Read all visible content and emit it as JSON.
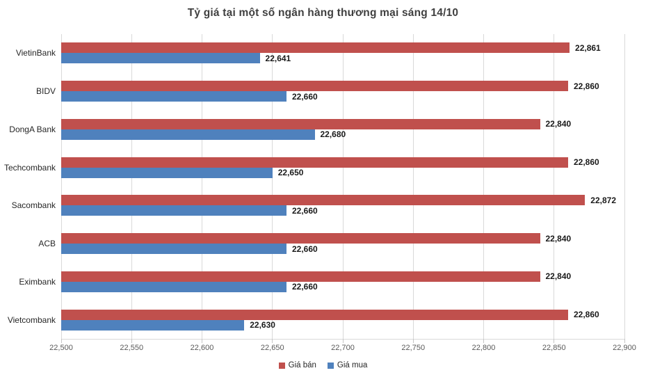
{
  "title": "Tỷ giá tại một số ngân hàng thương mại sáng 14/10",
  "colors": {
    "sell_bar": "#C0504D",
    "buy_bar": "#4F81BD",
    "gridline": "#d9d9d9",
    "title_text": "#404040",
    "tick_text": "#595959",
    "label_text": "#1a1a1a"
  },
  "chart_data": {
    "type": "bar",
    "orientation": "horizontal",
    "title": "Tỷ giá tại một số ngân hàng thương mại sáng 14/10",
    "categories": [
      "VietinBank",
      "BIDV",
      "DongA Bank",
      "Techcombank",
      "Sacombank",
      "ACB",
      "Eximbank",
      "Vietcombank"
    ],
    "series": [
      {
        "name": "Giá bán",
        "color": "#C0504D",
        "values": [
          22861,
          22860,
          22840,
          22860,
          22872,
          22840,
          22840,
          22860
        ]
      },
      {
        "name": "Giá mua",
        "color": "#4F81BD",
        "values": [
          22641,
          22660,
          22680,
          22650,
          22660,
          22660,
          22660,
          22630
        ]
      }
    ],
    "data_labels": [
      "22,861",
      "22,641",
      "22,860",
      "22,660",
      "22,840",
      "22,680",
      "22,860",
      "22,650",
      "22,872",
      "22,660",
      "22,840",
      "22,660",
      "22,840",
      "22,660",
      "22,860",
      "22,630"
    ],
    "xlim": [
      22500,
      22900
    ],
    "x_tick_values": [
      22500,
      22550,
      22600,
      22650,
      22700,
      22750,
      22800,
      22850,
      22900
    ],
    "x_tick_labels": [
      "22,500",
      "22,550",
      "22,600",
      "22,650",
      "22,700",
      "22,750",
      "22,800",
      "22,850",
      "22,900"
    ],
    "grid": true,
    "legend_position": "bottom",
    "legend": [
      {
        "label": "Giá bán",
        "color": "#C0504D"
      },
      {
        "label": "Giá mua",
        "color": "#4F81BD"
      }
    ]
  }
}
